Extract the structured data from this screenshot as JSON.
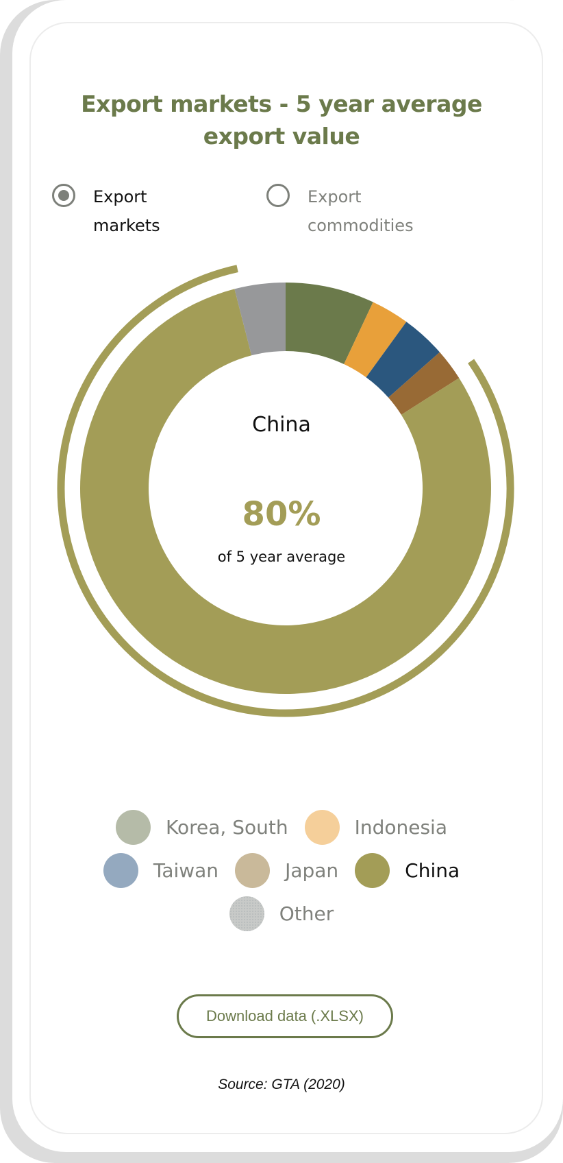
{
  "title": {
    "line1": "Export markets - 5 year average",
    "line2": "export value"
  },
  "toggle": [
    {
      "label_line1": "Export",
      "label_line2": "markets",
      "selected": true
    },
    {
      "label_line1": "Export",
      "label_line2": "commodities",
      "selected": false
    }
  ],
  "center": {
    "name": "China",
    "percent": "80%",
    "caption": "of 5 year average"
  },
  "chart_data": {
    "type": "pie",
    "variant": "donut",
    "unit": "percent of 5 year average export value",
    "highlighted": "China",
    "slices": [
      {
        "name": "Korea, South",
        "value": 7,
        "color": "#6b7a4b",
        "legend_color": "#b5bba8"
      },
      {
        "name": "Indonesia",
        "value": 3,
        "color": "#e8a03a",
        "legend_color": "#f5cf9a"
      },
      {
        "name": "Taiwan",
        "value": 3.5,
        "color": "#2b577e",
        "legend_color": "#94a9bf"
      },
      {
        "name": "Japan",
        "value": 2.5,
        "color": "#986a35",
        "legend_color": "#c9b99a"
      },
      {
        "name": "China",
        "value": 80,
        "color": "#a39d57",
        "legend_color": "#a39d57"
      },
      {
        "name": "Other",
        "value": 4,
        "color": "#97989a",
        "legend_color": "#c8cac8"
      }
    ]
  },
  "legend_rows": [
    [
      "Korea, South",
      "Indonesia"
    ],
    [
      "Taiwan",
      "Japan",
      "China"
    ],
    [
      "Other"
    ]
  ],
  "download_label": "Download data (.XLSX)",
  "source": "Source: GTA (2020)"
}
